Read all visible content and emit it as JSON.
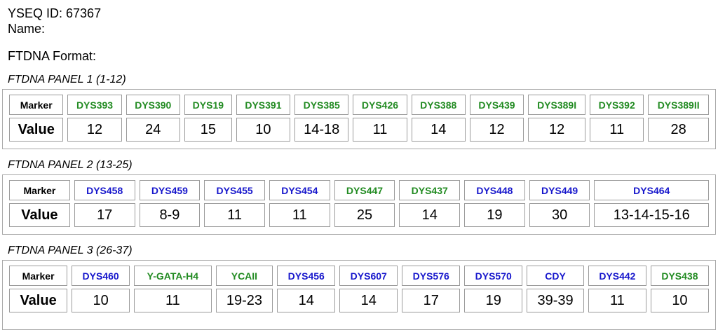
{
  "header": {
    "yseq_id_line": "YSEQ ID: 67367",
    "name_line": "Name:",
    "format_line": "FTDNA Format:"
  },
  "row_labels": {
    "marker": "Marker",
    "value": "Value"
  },
  "colors": {
    "marker_green": "#228B22",
    "marker_blue": "#1717CC",
    "cell_border": "#9b9b9b",
    "box_border": "#a8a8a8",
    "text": "#000000"
  },
  "panels": [
    {
      "title": "FTDNA PANEL 1 (1-12)",
      "markers": [
        {
          "name": "DYS393",
          "color": "green",
          "value": "12"
        },
        {
          "name": "DYS390",
          "color": "green",
          "value": "24"
        },
        {
          "name": "DYS19",
          "color": "green",
          "value": "15"
        },
        {
          "name": "DYS391",
          "color": "green",
          "value": "10"
        },
        {
          "name": "DYS385",
          "color": "green",
          "value": "14-18"
        },
        {
          "name": "DYS426",
          "color": "green",
          "value": "11"
        },
        {
          "name": "DYS388",
          "color": "green",
          "value": "14"
        },
        {
          "name": "DYS439",
          "color": "green",
          "value": "12"
        },
        {
          "name": "DYS389I",
          "color": "green",
          "value": "12"
        },
        {
          "name": "DYS392",
          "color": "green",
          "value": "11"
        },
        {
          "name": "DYS389II",
          "color": "green",
          "value": "28"
        }
      ]
    },
    {
      "title": "FTDNA PANEL 2 (13-25)",
      "markers": [
        {
          "name": "DYS458",
          "color": "blue",
          "value": "17"
        },
        {
          "name": "DYS459",
          "color": "blue",
          "value": "8-9"
        },
        {
          "name": "DYS455",
          "color": "blue",
          "value": "11"
        },
        {
          "name": "DYS454",
          "color": "blue",
          "value": "11"
        },
        {
          "name": "DYS447",
          "color": "green",
          "value": "25"
        },
        {
          "name": "DYS437",
          "color": "green",
          "value": "14"
        },
        {
          "name": "DYS448",
          "color": "blue",
          "value": "19"
        },
        {
          "name": "DYS449",
          "color": "blue",
          "value": "30"
        },
        {
          "name": "DYS464",
          "color": "blue",
          "value": "13-14-15-16"
        }
      ]
    },
    {
      "title": "FTDNA PANEL 3 (26-37)",
      "markers": [
        {
          "name": "DYS460",
          "color": "blue",
          "value": "10"
        },
        {
          "name": "Y-GATA-H4",
          "color": "green",
          "value": "11"
        },
        {
          "name": "YCAII",
          "color": "green",
          "value": "19-23"
        },
        {
          "name": "DYS456",
          "color": "blue",
          "value": "14"
        },
        {
          "name": "DYS607",
          "color": "blue",
          "value": "14"
        },
        {
          "name": "DYS576",
          "color": "blue",
          "value": "17"
        },
        {
          "name": "DYS570",
          "color": "blue",
          "value": "19"
        },
        {
          "name": "CDY",
          "color": "blue",
          "value": "39-39"
        },
        {
          "name": "DYS442",
          "color": "blue",
          "value": "11"
        },
        {
          "name": "DYS438",
          "color": "green",
          "value": "10"
        }
      ]
    }
  ]
}
